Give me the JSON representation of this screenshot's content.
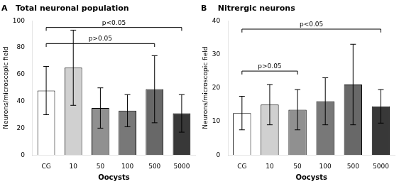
{
  "chart_data": [
    {
      "type": "bar",
      "title": "A   Total neuronal population",
      "categories": [
        "CG",
        "10",
        "50",
        "100",
        "500",
        "5000"
      ],
      "values": [
        48,
        65,
        35,
        33,
        49,
        31
      ],
      "errors": [
        18,
        28,
        15,
        12,
        25,
        14
      ],
      "colors": [
        "#ffffff",
        "#d0d0d0",
        "#909090",
        "#787878",
        "#686868",
        "#383838"
      ],
      "xlabel": "Oocysts",
      "ylabel": "Neurons/microscopic field",
      "ylim": [
        0,
        100
      ],
      "yticks": [
        0,
        20,
        40,
        60,
        80,
        100
      ],
      "grid": false,
      "annotations": [
        {
          "text": "p<0.05",
          "from": "CG",
          "to": "5000",
          "y": 95
        },
        {
          "text": "p>0.05",
          "from": "CG",
          "to": "500",
          "y": 83
        }
      ]
    },
    {
      "type": "bar",
      "title": "B    Nitrergic neurons",
      "categories": [
        "CG",
        "10",
        "50",
        "100",
        "500",
        "5000"
      ],
      "values": [
        12.5,
        15,
        13.5,
        16,
        21,
        14.5
      ],
      "errors": [
        5,
        6,
        6,
        7,
        12,
        5
      ],
      "colors": [
        "#ffffff",
        "#d0d0d0",
        "#909090",
        "#787878",
        "#686868",
        "#383838"
      ],
      "xlabel": "Oocysts",
      "ylabel": "Neurons/microscopic field",
      "ylim": [
        0,
        40
      ],
      "yticks": [
        0,
        10,
        20,
        30,
        40
      ],
      "grid": false,
      "annotations": [
        {
          "text": "p<0.05",
          "from": "CG",
          "to": "5000",
          "y": 37.5
        },
        {
          "text": "p>0.05",
          "from": "CG",
          "to": "50",
          "y": 25
        }
      ]
    }
  ]
}
